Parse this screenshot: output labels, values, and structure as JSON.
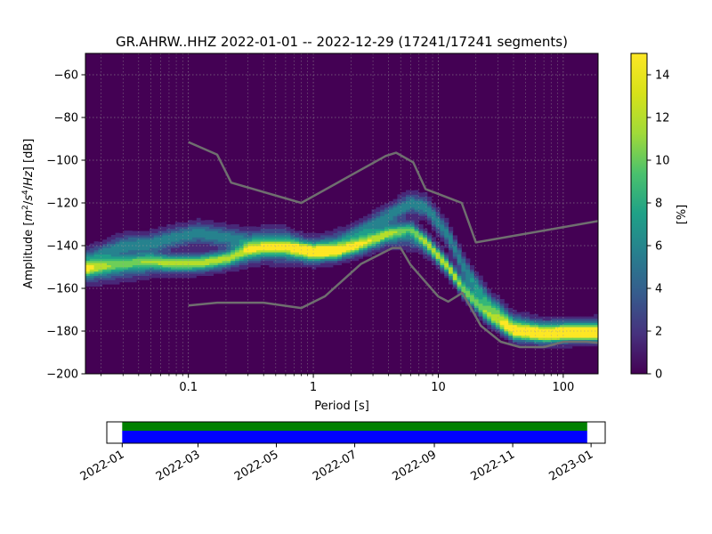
{
  "title": "GR.AHRW..HHZ   2022-01-01 -- 2022-12-29  (17241/17241 segments)",
  "chart_data": {
    "type": "heatmap",
    "title": "GR.AHRW..HHZ   2022-01-01 -- 2022-12-29  (17241/17241 segments)",
    "xlabel": "Period [s]",
    "ylabel_parts": [
      "Amplitude [",
      "m",
      "2",
      "/",
      "s",
      "4",
      "/",
      "Hz",
      "] [dB]"
    ],
    "x_scale": "log",
    "xlim": [
      0.015,
      190
    ],
    "ylim": [
      -200,
      -50
    ],
    "x_ticks": [
      {
        "value": 0.1,
        "label": "0.1"
      },
      {
        "value": 1,
        "label": "1"
      },
      {
        "value": 10,
        "label": "10"
      },
      {
        "value": 100,
        "label": "100"
      }
    ],
    "y_ticks": [
      {
        "value": -60,
        "label": "−60"
      },
      {
        "value": -80,
        "label": "−80"
      },
      {
        "value": -100,
        "label": "−100"
      },
      {
        "value": -120,
        "label": "−120"
      },
      {
        "value": -140,
        "label": "−140"
      },
      {
        "value": -160,
        "label": "−160"
      },
      {
        "value": -180,
        "label": "−180"
      },
      {
        "value": -200,
        "label": "−200"
      }
    ],
    "grid": true,
    "colormap": "viridis",
    "colorbar": {
      "label": "[%]",
      "range": [
        0,
        15
      ],
      "ticks": [
        {
          "value": 0,
          "label": "0"
        },
        {
          "value": 2,
          "label": "2"
        },
        {
          "value": 4,
          "label": "4"
        },
        {
          "value": 6,
          "label": "6"
        },
        {
          "value": 8,
          "label": "8"
        },
        {
          "value": 10,
          "label": "10"
        },
        {
          "value": 12,
          "label": "12"
        },
        {
          "value": 14,
          "label": "14"
        }
      ]
    },
    "density_ridges": [
      {
        "peak": 7,
        "width": 3.2,
        "points": [
          [
            0.015,
            -147
          ],
          [
            0.03,
            -140
          ],
          [
            0.05,
            -139
          ],
          [
            0.08,
            -136
          ],
          [
            0.12,
            -134
          ],
          [
            0.2,
            -136
          ],
          [
            0.3,
            -138
          ],
          [
            0.4,
            -137
          ],
          [
            0.6,
            -137
          ],
          [
            0.8,
            -140
          ],
          [
            1.0,
            -141
          ],
          [
            1.5,
            -139
          ],
          [
            2.5,
            -133
          ],
          [
            4,
            -126
          ],
          [
            6,
            -120
          ],
          [
            8,
            -122
          ],
          [
            12,
            -135
          ],
          [
            16,
            -150
          ],
          [
            25,
            -166
          ],
          [
            40,
            -177
          ],
          [
            70,
            -180
          ],
          [
            120,
            -180
          ],
          [
            190,
            -180
          ]
        ]
      },
      {
        "peak": 10,
        "width": 2.4,
        "points": [
          [
            0.015,
            -151
          ],
          [
            0.03,
            -148
          ],
          [
            0.05,
            -147
          ],
          [
            0.08,
            -148
          ],
          [
            0.12,
            -148
          ],
          [
            0.2,
            -146
          ],
          [
            0.3,
            -142
          ],
          [
            0.4,
            -141
          ],
          [
            0.6,
            -141
          ],
          [
            0.8,
            -142
          ],
          [
            1.0,
            -143
          ],
          [
            1.5,
            -143
          ],
          [
            2.5,
            -139
          ],
          [
            4,
            -134
          ],
          [
            6,
            -132
          ],
          [
            8,
            -138
          ],
          [
            12,
            -150
          ],
          [
            16,
            -161
          ],
          [
            25,
            -173
          ],
          [
            40,
            -181
          ],
          [
            70,
            -182
          ],
          [
            120,
            -181
          ],
          [
            190,
            -181
          ]
        ]
      },
      {
        "peak": 4,
        "width": 3.0,
        "points": [
          [
            0.015,
            -154
          ],
          [
            0.03,
            -152
          ],
          [
            0.05,
            -150
          ],
          [
            0.1,
            -149
          ],
          [
            0.2,
            -147
          ],
          [
            0.4,
            -144
          ],
          [
            1.0,
            -145
          ],
          [
            2,
            -142
          ],
          [
            4,
            -136
          ],
          [
            7,
            -138
          ],
          [
            10,
            -145
          ],
          [
            15,
            -156
          ],
          [
            25,
            -169
          ],
          [
            40,
            -178
          ],
          [
            70,
            -180
          ],
          [
            190,
            -179
          ]
        ]
      }
    ],
    "noise_model_high": [
      [
        0.1,
        -91.5
      ],
      [
        0.17,
        -97.4
      ],
      [
        0.22,
        -110.5
      ],
      [
        0.8,
        -120
      ],
      [
        3.8,
        -98
      ],
      [
        4.6,
        -96.5
      ],
      [
        6.3,
        -101
      ],
      [
        7.9,
        -113.5
      ],
      [
        15.4,
        -120
      ],
      [
        20,
        -138.5
      ],
      [
        190,
        -128.5
      ]
    ],
    "noise_model_low": [
      [
        0.1,
        -168
      ],
      [
        0.17,
        -166.7
      ],
      [
        0.4,
        -166.7
      ],
      [
        0.8,
        -169.2
      ],
      [
        1.24,
        -163.7
      ],
      [
        2.4,
        -148.6
      ],
      [
        4.3,
        -141.1
      ],
      [
        5.0,
        -141.1
      ],
      [
        6.0,
        -149
      ],
      [
        10,
        -163.8
      ],
      [
        12,
        -166.2
      ],
      [
        15.6,
        -162.1
      ],
      [
        21.9,
        -177.5
      ],
      [
        31.6,
        -185
      ],
      [
        45,
        -187.5
      ],
      [
        70,
        -187.5
      ],
      [
        101,
        -185
      ],
      [
        154,
        -185
      ],
      [
        190,
        -185.5
      ]
    ],
    "timeline": {
      "x_ticks": [
        "2022-01",
        "2022-03",
        "2022-05",
        "2022-07",
        "2022-09",
        "2022-11",
        "2023-01"
      ],
      "tick_dates": [
        "2022-01-01",
        "2022-03-01",
        "2022-05-01",
        "2022-07-01",
        "2022-09-01",
        "2022-11-01",
        "2023-01-01"
      ],
      "xlim": [
        "2021-12-20",
        "2023-01-12"
      ],
      "coverage": [
        {
          "band": "top",
          "color": "#008000",
          "start": "2022-01-01",
          "end": "2022-12-29"
        },
        {
          "band": "bottom",
          "color": "#0000ff",
          "start": "2022-01-01",
          "end": "2022-12-29"
        }
      ]
    }
  }
}
